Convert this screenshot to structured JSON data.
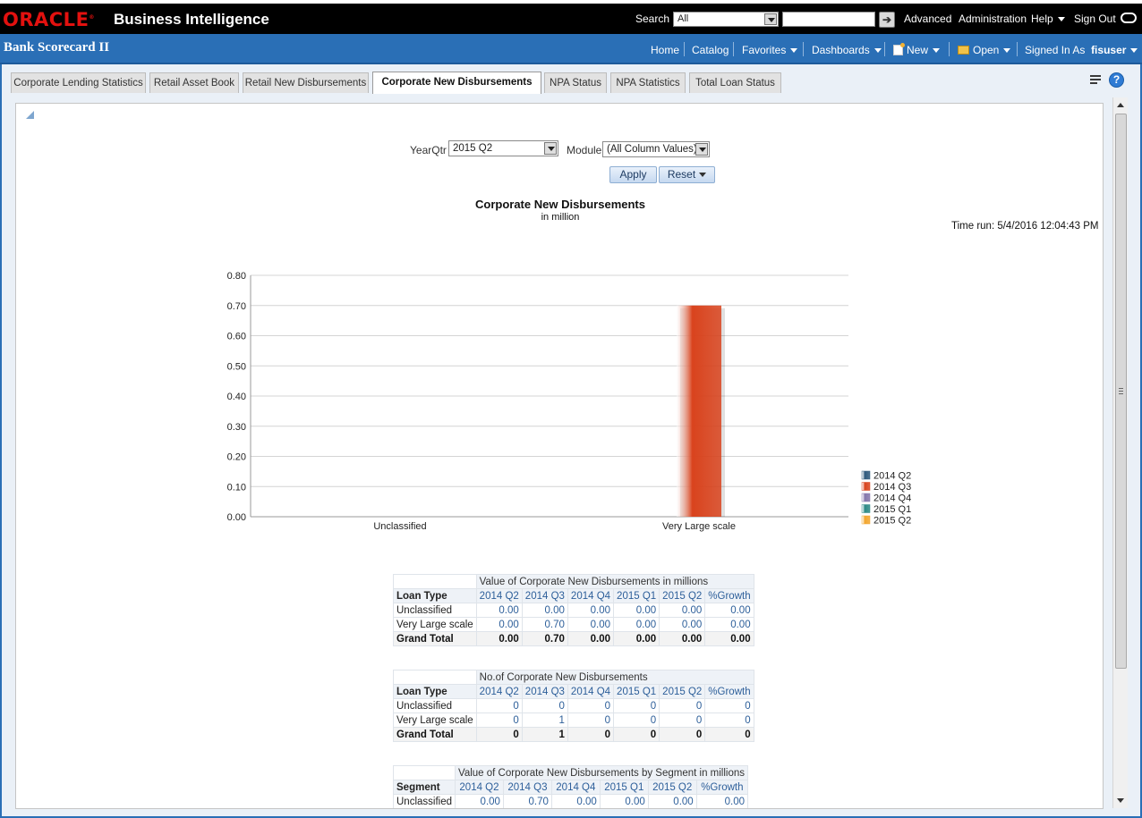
{
  "topbar": {
    "product": "Business Intelligence",
    "search_label": "Search",
    "search_scope": "All",
    "links": [
      "Advanced",
      "Administration",
      "Help",
      "Sign Out"
    ]
  },
  "navbar": {
    "dashboard_title": "Bank Scorecard II",
    "links": {
      "home": "Home",
      "catalog": "Catalog",
      "favorites": "Favorites",
      "dashboards": "Dashboards",
      "new": "New",
      "open": "Open"
    },
    "signed_in_label": "Signed In As",
    "user": "fisuser"
  },
  "tabs": [
    "Corporate Lending Statistics",
    "Retail Asset Book",
    "Retail New Disbursements",
    "Corporate New Disbursements",
    "NPA Status",
    "NPA Statistics",
    "Total Loan Status"
  ],
  "active_tab": 3,
  "prompts": {
    "yearqtr_label": "YearQtr",
    "yearqtr_value": "2015 Q2",
    "module_label": "Module",
    "module_value": "(All Column Values)",
    "apply_label": "Apply",
    "reset_label": "Reset"
  },
  "report": {
    "title": "Corporate New Disbursements",
    "subtitle": "in million",
    "time_run": "Time run: 5/4/2016 12:04:43 PM"
  },
  "chart_data": {
    "type": "bar",
    "categories": [
      "Unclassified",
      "Very Large scale"
    ],
    "series": [
      {
        "name": "2014 Q2",
        "values": [
          0,
          0
        ],
        "color": "#2e5a7d"
      },
      {
        "name": "2014 Q3",
        "values": [
          0,
          0.7
        ],
        "color": "#d9431d"
      },
      {
        "name": "2014 Q4",
        "values": [
          0,
          0
        ],
        "color": "#8577ac"
      },
      {
        "name": "2015 Q1",
        "values": [
          0,
          0
        ],
        "color": "#2c8a86"
      },
      {
        "name": "2015 Q2",
        "values": [
          0,
          0
        ],
        "color": "#f2a62e"
      }
    ],
    "ylim": [
      0,
      0.8
    ],
    "yticks": [
      "0.00",
      "0.10",
      "0.20",
      "0.30",
      "0.40",
      "0.50",
      "0.60",
      "0.70",
      "0.80"
    ],
    "grid": true,
    "legend": "right"
  },
  "tables": [
    {
      "measure": "Value of Corporate New Disbursements in millions",
      "row_header": "Loan Type",
      "columns": [
        "2014 Q2",
        "2014 Q3",
        "2014 Q4",
        "2015 Q1",
        "2015 Q2",
        "%Growth"
      ],
      "rows": [
        {
          "label": "Unclassified",
          "values": [
            "0.00",
            "0.00",
            "0.00",
            "0.00",
            "0.00",
            "0.00"
          ]
        },
        {
          "label": "Very Large scale",
          "values": [
            "0.00",
            "0.70",
            "0.00",
            "0.00",
            "0.00",
            "0.00"
          ]
        },
        {
          "label": "Grand Total",
          "values": [
            "0.00",
            "0.70",
            "0.00",
            "0.00",
            "0.00",
            "0.00"
          ],
          "total": true
        }
      ]
    },
    {
      "measure": "No.of Corporate New Disbursements",
      "row_header": "Loan Type",
      "columns": [
        "2014 Q2",
        "2014 Q3",
        "2014 Q4",
        "2015 Q1",
        "2015 Q2",
        "%Growth"
      ],
      "rows": [
        {
          "label": "Unclassified",
          "values": [
            "0",
            "0",
            "0",
            "0",
            "0",
            "0"
          ]
        },
        {
          "label": "Very Large scale",
          "values": [
            "0",
            "1",
            "0",
            "0",
            "0",
            "0"
          ]
        },
        {
          "label": "Grand Total",
          "values": [
            "0",
            "1",
            "0",
            "0",
            "0",
            "0"
          ],
          "total": true
        }
      ]
    },
    {
      "measure": "Value of Corporate New Disbursements by Segment in millions",
      "row_header": "Segment",
      "columns": [
        "2014 Q2",
        "2014 Q3",
        "2014 Q4",
        "2015 Q1",
        "2015 Q2",
        "%Growth"
      ],
      "rows": [
        {
          "label": "Unclassified",
          "values": [
            "0.00",
            "0.70",
            "0.00",
            "0.00",
            "0.00",
            "0.00"
          ]
        }
      ]
    }
  ]
}
